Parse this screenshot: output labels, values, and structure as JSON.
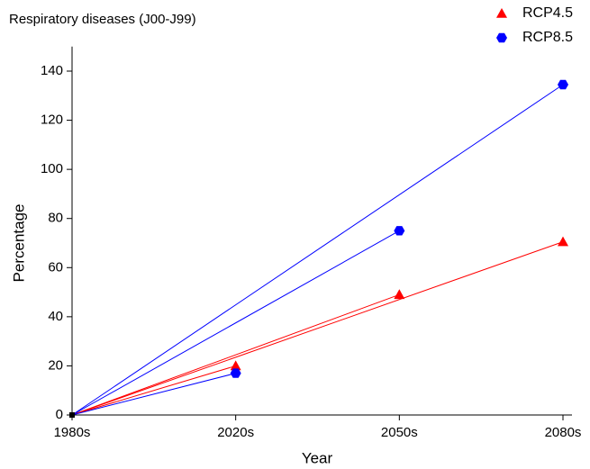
{
  "chart_data": {
    "type": "line",
    "title": "Respiratory diseases (J00-J99)",
    "x_label": "Year",
    "y_label": "Percentage",
    "categories": [
      "1980s",
      "2020s",
      "2050s",
      "2080s"
    ],
    "series": [
      {
        "name": "RCP4.5",
        "color": "#ff0000",
        "marker": "triangle",
        "values": [
          0,
          20,
          49,
          70.5
        ]
      },
      {
        "name": "RCP8.5",
        "color": "#0000ff",
        "marker": "hexagon",
        "values": [
          0,
          17,
          75,
          134.5
        ]
      }
    ],
    "ylim": [
      0,
      150
    ],
    "yticks": [
      0,
      20,
      40,
      60,
      80,
      100,
      120,
      140
    ],
    "legend": "top-right"
  }
}
